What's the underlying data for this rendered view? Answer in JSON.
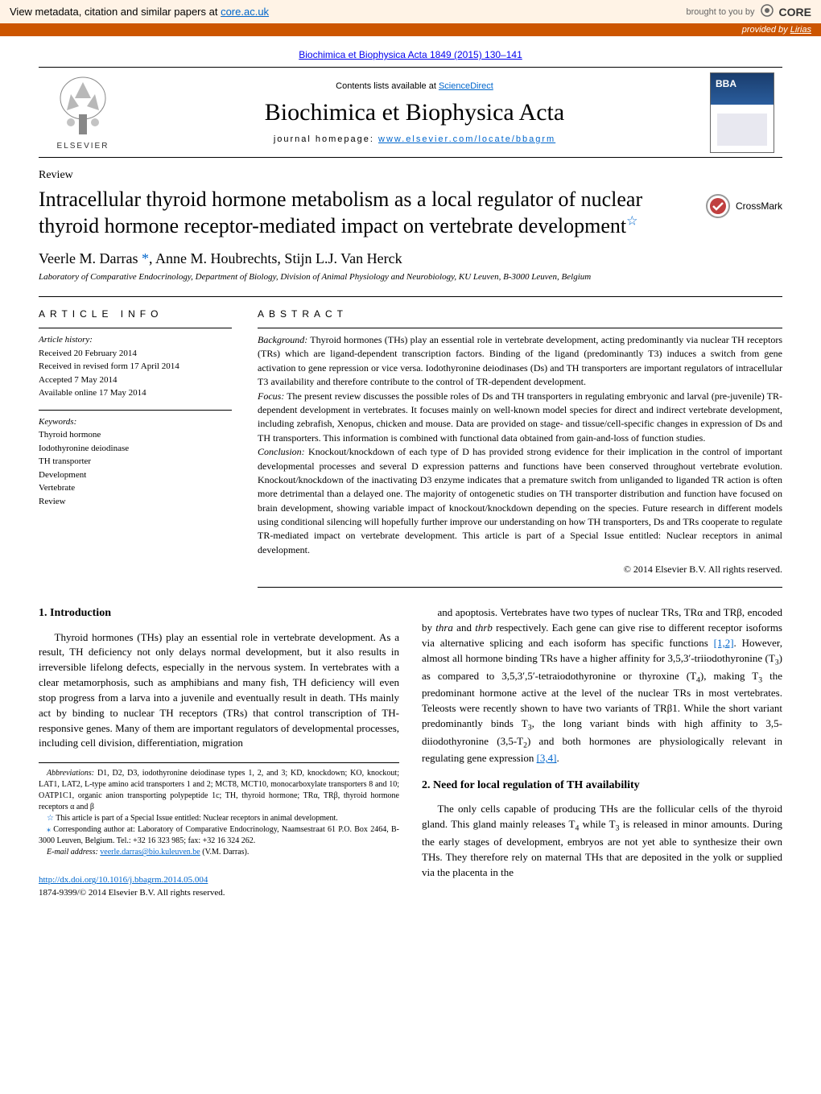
{
  "core_banner": {
    "left_prefix": "View metadata, citation and similar papers at ",
    "left_link": "core.ac.uk",
    "right_prefix": "brought to you by",
    "right_logo": "CORE"
  },
  "provided_bar": {
    "prefix": "provided by ",
    "source": "Lirias"
  },
  "journal_ref": "Biochimica et Biophysica Acta 1849 (2015) 130–141",
  "masthead": {
    "contents_prefix": "Contents lists available at ",
    "contents_link": "ScienceDirect",
    "journal_title": "Biochimica et Biophysica Acta",
    "homepage_prefix": "journal homepage: ",
    "homepage_link": "www.elsevier.com/locate/bbagrm",
    "publisher": "ELSEVIER"
  },
  "article_type": "Review",
  "article_title": "Intracellular thyroid hormone metabolism as a local regulator of nuclear thyroid hormone receptor-mediated impact on vertebrate development",
  "crossmark": "CrossMark",
  "authors_html": "Veerle M. Darras <span class='ast'>*</span>, Anne M. Houbrechts, Stijn L.J. Van Herck",
  "affiliation": "Laboratory of Comparative Endocrinology, Department of Biology, Division of Animal Physiology and Neurobiology, KU Leuven, B-3000 Leuven, Belgium",
  "info": {
    "label": "ARTICLE INFO",
    "history_hdr": "Article history:",
    "history": [
      "Received 20 February 2014",
      "Received in revised form 17 April 2014",
      "Accepted 7 May 2014",
      "Available online 17 May 2014"
    ],
    "keywords_hdr": "Keywords:",
    "keywords": [
      "Thyroid hormone",
      "Iodothyronine deiodinase",
      "TH transporter",
      "Development",
      "Vertebrate",
      "Review"
    ]
  },
  "abstract": {
    "label": "ABSTRACT",
    "background_lbl": "Background:",
    "background": " Thyroid hormones (THs) play an essential role in vertebrate development, acting predominantly via nuclear TH receptors (TRs) which are ligand-dependent transcription factors. Binding of the ligand (predominantly T3) induces a switch from gene activation to gene repression or vice versa. Iodothyronine deiodinases (Ds) and TH transporters are important regulators of intracellular T3 availability and therefore contribute to the control of TR-dependent development.",
    "focus_lbl": "Focus:",
    "focus": " The present review discusses the possible roles of Ds and TH transporters in regulating embryonic and larval (pre-juvenile) TR-dependent development in vertebrates. It focuses mainly on well-known model species for direct and indirect vertebrate development, including zebrafish, Xenopus, chicken and mouse. Data are provided on stage- and tissue/cell-specific changes in expression of Ds and TH transporters. This information is combined with functional data obtained from gain-and-loss of function studies.",
    "conclusion_lbl": "Conclusion:",
    "conclusion": " Knockout/knockdown of each type of D has provided strong evidence for their implication in the control of important developmental processes and several D expression patterns and functions have been conserved throughout vertebrate evolution. Knockout/knockdown of the inactivating D3 enzyme indicates that a premature switch from unliganded to liganded TR action is often more detrimental than a delayed one. The majority of ontogenetic studies on TH transporter distribution and function have focused on brain development, showing variable impact of knockout/knockdown depending on the species. Future research in different models using conditional silencing will hopefully further improve our understanding on how TH transporters, Ds and TRs cooperate to regulate TR-mediated impact on vertebrate development. This article is part of a Special Issue entitled: Nuclear receptors in animal development.",
    "copyright": "© 2014 Elsevier B.V. All rights reserved."
  },
  "body": {
    "section1_title": "1. Introduction",
    "section1_p1": "Thyroid hormones (THs) play an essential role in vertebrate development. As a result, TH deficiency not only delays normal development, but it also results in irreversible lifelong defects, especially in the nervous system. In vertebrates with a clear metamorphosis, such as amphibians and many fish, TH deficiency will even stop progress from a larva into a juvenile and eventually result in death. THs mainly act by binding to nuclear TH receptors (TRs) that control transcription of TH-responsive genes. Many of them are important regulators of developmental processes, including cell division, differentiation, migration",
    "col2_p1_html": "and apoptosis. Vertebrates have two types of nuclear TRs, TRα and TRβ, encoded by <i>thra</i> and <i>thrb</i> respectively. Each gene can give rise to different receptor isoforms via alternative splicing and each isoform has specific functions <a class='ref-link' href='#'>[1,2]</a>. However, almost all hormone binding TRs have a higher affinity for 3,5,3′-triiodothyronine (T<sub>3</sub>) as compared to 3,5,3′,5′-tetraiodothyronine or thyroxine (T<sub>4</sub>), making T<sub>3</sub> the predominant hormone active at the level of the nuclear TRs in most vertebrates. Teleosts were recently shown to have two variants of TRβ1. While the short variant predominantly binds T<sub>3</sub>, the long variant binds with high affinity to 3,5-diiodothyronine (3,5-T<sub>2</sub>) and both hormones are physiologically relevant in regulating gene expression <a class='ref-link' href='#'>[3,4]</a>.",
    "section2_title": "2. Need for local regulation of TH availability",
    "section2_p1_html": "The only cells capable of producing THs are the follicular cells of the thyroid gland. This gland mainly releases T<sub>4</sub> while T<sub>3</sub> is released in minor amounts. During the early stages of development, embryos are not yet able to synthesize their own THs. They therefore rely on maternal THs that are deposited in the yolk or supplied via the placenta in the"
  },
  "footnotes": {
    "abbrev_lbl": "Abbreviations:",
    "abbrev": " D1, D2, D3, iodothyronine deiodinase types 1, 2, and 3; KD, knockdown; KO, knockout; LAT1, LAT2, L-type amino acid transporters 1 and 2; MCT8, MCT10, monocarboxylate transporters 8 and 10; OATP1C1, organic anion transporting polypeptide 1c; TH, thyroid hormone; TRα, TRβ, thyroid hormone receptors α and β",
    "special_issue": "This article is part of a Special Issue entitled: Nuclear receptors in animal development.",
    "corresponding": "Corresponding author at: Laboratory of Comparative Endocrinology, Naamsestraat 61 P.O. Box 2464, B-3000 Leuven, Belgium. Tel.: +32 16 323 985; fax: +32 16 324 262.",
    "email_lbl": "E-mail address:",
    "email": "veerle.darras@bio.kuleuven.be",
    "email_suffix": " (V.M. Darras)."
  },
  "doi": {
    "link": "http://dx.doi.org/10.1016/j.bbagrm.2014.05.004",
    "issn": "1874-9399/© 2014 Elsevier B.V. All rights reserved."
  },
  "colors": {
    "core_bg": "#fff3e6",
    "provided_bg": "#cc5500",
    "link": "#0066cc"
  }
}
